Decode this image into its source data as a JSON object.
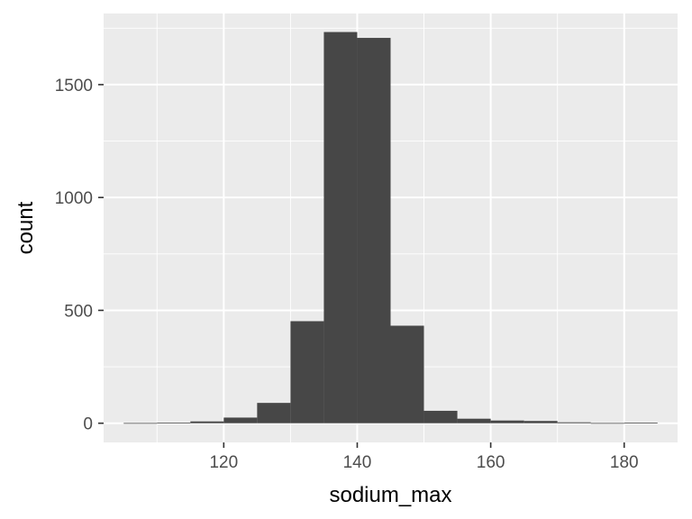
{
  "chart_data": {
    "type": "bar",
    "subtype": "histogram",
    "title": "",
    "xlabel": "sodium_max",
    "ylabel": "count",
    "xlim": [
      102,
      188
    ],
    "ylim": [
      -85,
      1815
    ],
    "x_ticks": [
      120,
      140,
      160,
      180
    ],
    "y_ticks": [
      0,
      500,
      1000,
      1500
    ],
    "grid": true,
    "legend": "none",
    "bins": [
      {
        "x0": 105,
        "x1": 110,
        "count": 1
      },
      {
        "x0": 110,
        "x1": 115,
        "count": 2
      },
      {
        "x0": 115,
        "x1": 120,
        "count": 8
      },
      {
        "x0": 120,
        "x1": 125,
        "count": 25
      },
      {
        "x0": 125,
        "x1": 130,
        "count": 90
      },
      {
        "x0": 130,
        "x1": 135,
        "count": 452
      },
      {
        "x0": 135,
        "x1": 140,
        "count": 1733
      },
      {
        "x0": 140,
        "x1": 145,
        "count": 1707
      },
      {
        "x0": 145,
        "x1": 150,
        "count": 432
      },
      {
        "x0": 150,
        "x1": 155,
        "count": 55
      },
      {
        "x0": 155,
        "x1": 160,
        "count": 20
      },
      {
        "x0": 160,
        "x1": 165,
        "count": 12
      },
      {
        "x0": 165,
        "x1": 170,
        "count": 10
      },
      {
        "x0": 170,
        "x1": 175,
        "count": 4
      },
      {
        "x0": 175,
        "x1": 180,
        "count": 1
      },
      {
        "x0": 180,
        "x1": 185,
        "count": 2
      }
    ],
    "colors": {
      "panel_background": "#ebebeb",
      "grid": "#ffffff",
      "bar_fill": "#474747",
      "tick_label": "#4d4d4d",
      "tick_mark": "#333333",
      "title": "#000000"
    }
  }
}
